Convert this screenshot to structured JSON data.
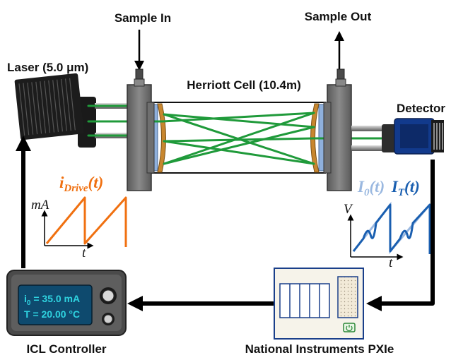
{
  "labels": {
    "sample_in": "Sample In",
    "sample_out": "Sample Out",
    "laser": "Laser (5.0 μm)",
    "cell": "Herriott Cell (10.4m)",
    "detector": "Detector",
    "controller": "ICL Controller",
    "pxie": "National Instruments PXIe"
  },
  "drive_plot": {
    "title_main": "i",
    "title_sub": "Drive",
    "title_arg": "(t)",
    "ylabel": "mA",
    "xlabel": "t"
  },
  "detector_plot": {
    "title_i0_main": "I",
    "title_i0_sub": "0",
    "title_i0_arg": "(t)",
    "title_it_main": "I",
    "title_it_sub": "T",
    "title_it_arg": "(t)",
    "ylabel": "V",
    "xlabel": "t"
  },
  "controller_display": {
    "current_symbol": "i",
    "current_sub": "0",
    "current_value": " = 35.0 mA",
    "temperature": "T = 20.00 °C"
  },
  "colors": {
    "drive": "#f07010",
    "i0": "#9ab8e0",
    "it": "#1a5fb0",
    "beam": "#1f9a3a",
    "lcd_bg": "#0e4a6e",
    "lcd_text": "#2fd3e0",
    "arrow": "#000000"
  }
}
